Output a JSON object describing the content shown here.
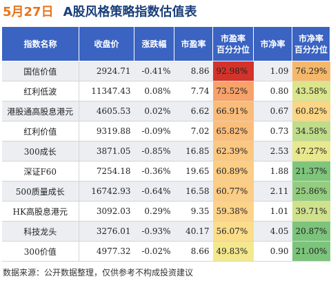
{
  "header": {
    "date": "5月27日",
    "title": "A股风格策略指数估值表"
  },
  "columns": [
    "指数名称",
    "收盘价",
    "涨跌幅",
    "市盈率",
    "市盈率\n百分分位",
    "市净率",
    "市净率\n百分分位"
  ],
  "rows": [
    {
      "name": "国信价值",
      "close": "2924.71",
      "change": "-0.41%",
      "pe": "8.86",
      "pe_pct": "92.98%",
      "pb": "1.09",
      "pb_pct": "76.29%",
      "pe_color": "#d3332a",
      "pb_color": "#f5b86b"
    },
    {
      "name": "红利低波",
      "close": "11347.43",
      "change": "0.08%",
      "pe": "7.74",
      "pe_pct": "73.52%",
      "pb": "0.80",
      "pb_pct": "43.58%",
      "pe_color": "#f6a26a",
      "pb_color": "#dbe58c"
    },
    {
      "name": "港股通高股息港元",
      "close": "4605.53",
      "change": "0.02%",
      "pe": "6.62",
      "pe_pct": "66.91%",
      "pb": "0.67",
      "pb_pct": "60.82%",
      "pe_color": "#f9bc7a",
      "pb_color": "#fad685"
    },
    {
      "name": "红利价值",
      "close": "9319.88",
      "change": "-0.09%",
      "pe": "7.02",
      "pe_pct": "65.82%",
      "pb": "0.73",
      "pb_pct": "34.58%",
      "pe_color": "#fabe7c",
      "pb_color": "#bfdc8a"
    },
    {
      "name": "300成长",
      "close": "3871.05",
      "change": "-0.85%",
      "pe": "16.85",
      "pe_pct": "62.39%",
      "pb": "2.53",
      "pb_pct": "47.27%",
      "pe_color": "#fbc882",
      "pb_color": "#e8e88d"
    },
    {
      "name": "深证F60",
      "close": "7254.18",
      "change": "-0.36%",
      "pe": "19.65",
      "pe_pct": "60.89%",
      "pb": "1.88",
      "pb_pct": "21.37%",
      "pe_color": "#fbcd85",
      "pb_color": "#7fc57c"
    },
    {
      "name": "500质量成长",
      "close": "16742.93",
      "change": "-0.64%",
      "pe": "16.58",
      "pe_pct": "60.77%",
      "pb": "2.11",
      "pb_pct": "25.86%",
      "pe_color": "#fbcd85",
      "pb_color": "#94cd80"
    },
    {
      "name": "HK高股息港元",
      "close": "3092.03",
      "change": "0.29%",
      "pe": "9.35",
      "pe_pct": "59.38%",
      "pb": "1.01",
      "pb_pct": "39.71%",
      "pe_color": "#fcd388",
      "pb_color": "#cfe18c"
    },
    {
      "name": "科技龙头",
      "close": "3276.01",
      "change": "-0.93%",
      "pe": "40.17",
      "pe_pct": "56.07%",
      "pb": "4.05",
      "pb_pct": "20.87%",
      "pe_color": "#fbdd8a",
      "pb_color": "#7cc47b"
    },
    {
      "name": "300价值",
      "close": "4977.32",
      "change": "-0.02%",
      "pe": "8.66",
      "pe_pct": "49.83%",
      "pb": "0.90",
      "pb_pct": "21.00%",
      "pe_color": "#f3e88d",
      "pb_color": "#7cc47b"
    }
  ],
  "footer": "数据来源：公开数据整理，仅供参考不构成投资建议",
  "watermark": ""
}
